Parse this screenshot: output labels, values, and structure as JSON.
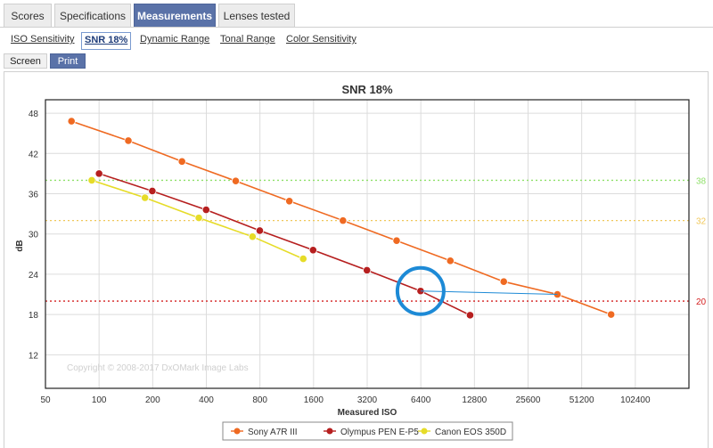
{
  "tabs": [
    {
      "label": "Scores",
      "active": false
    },
    {
      "label": "Specifications",
      "active": false
    },
    {
      "label": "Measurements",
      "active": true
    },
    {
      "label": "Lenses tested",
      "active": false
    }
  ],
  "sub_tabs": [
    {
      "label": "ISO Sensitivity",
      "active": false
    },
    {
      "label": "SNR 18%",
      "active": true
    },
    {
      "label": "Dynamic Range",
      "active": false
    },
    {
      "label": "Tonal Range",
      "active": false
    },
    {
      "label": "Color Sensitivity",
      "active": false
    }
  ],
  "view_modes": [
    {
      "label": "Screen",
      "active": false
    },
    {
      "label": "Print",
      "active": true
    }
  ],
  "copyright": "Copyright © 2008-2017 DxOMark Image Labs",
  "chart_data": {
    "type": "line",
    "title": "SNR 18%",
    "xlabel": "Measured ISO",
    "ylabel": "dB",
    "x_scale": "log2",
    "x_ticks": [
      "50",
      "100",
      "200",
      "400",
      "800",
      "1600",
      "3200",
      "6400",
      "12800",
      "25600",
      "51200",
      "102400"
    ],
    "y_ticks": [
      "12",
      "18",
      "24",
      "30",
      "36",
      "42",
      "48"
    ],
    "ylim": [
      7,
      50
    ],
    "grid": true,
    "legend_position": "bottom",
    "reference_lines": [
      {
        "label": "38",
        "value": 38,
        "color": "#8fe06a"
      },
      {
        "label": "32",
        "value": 32,
        "color": "#f0c85a"
      },
      {
        "label": "20",
        "value": 20,
        "color": "#d42020"
      }
    ],
    "series": [
      {
        "name": "Sony A7R III",
        "color": "#ef6a22",
        "x": [
          70,
          146,
          292,
          585,
          1170,
          2340,
          4680,
          9370,
          18700,
          37400,
          74900
        ],
        "y": [
          46.8,
          43.9,
          40.8,
          37.9,
          34.9,
          32.0,
          29.0,
          26.0,
          22.9,
          21.0,
          18.0
        ]
      },
      {
        "name": "Olympus PEN E-P5",
        "color": "#b61f1f",
        "x": [
          100,
          199,
          399,
          798,
          1590,
          3190,
          6380,
          12100
        ],
        "y": [
          39.0,
          36.4,
          33.6,
          30.5,
          27.6,
          24.6,
          21.5,
          17.9
        ]
      },
      {
        "name": "Canon EOS 350D",
        "color": "#e6dc28",
        "x": [
          91,
          181,
          363,
          727,
          1400
        ],
        "y": [
          38.0,
          35.4,
          32.4,
          29.6,
          26.3
        ]
      }
    ],
    "highlight": {
      "series": "Olympus PEN E-P5",
      "iso": 6380,
      "color": "#1d8ad6"
    }
  }
}
